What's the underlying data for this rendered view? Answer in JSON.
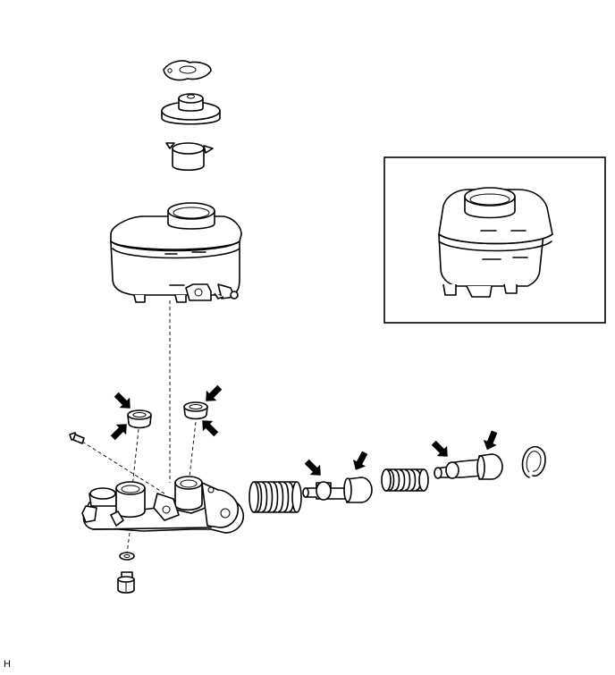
{
  "figure": {
    "code": "H"
  }
}
